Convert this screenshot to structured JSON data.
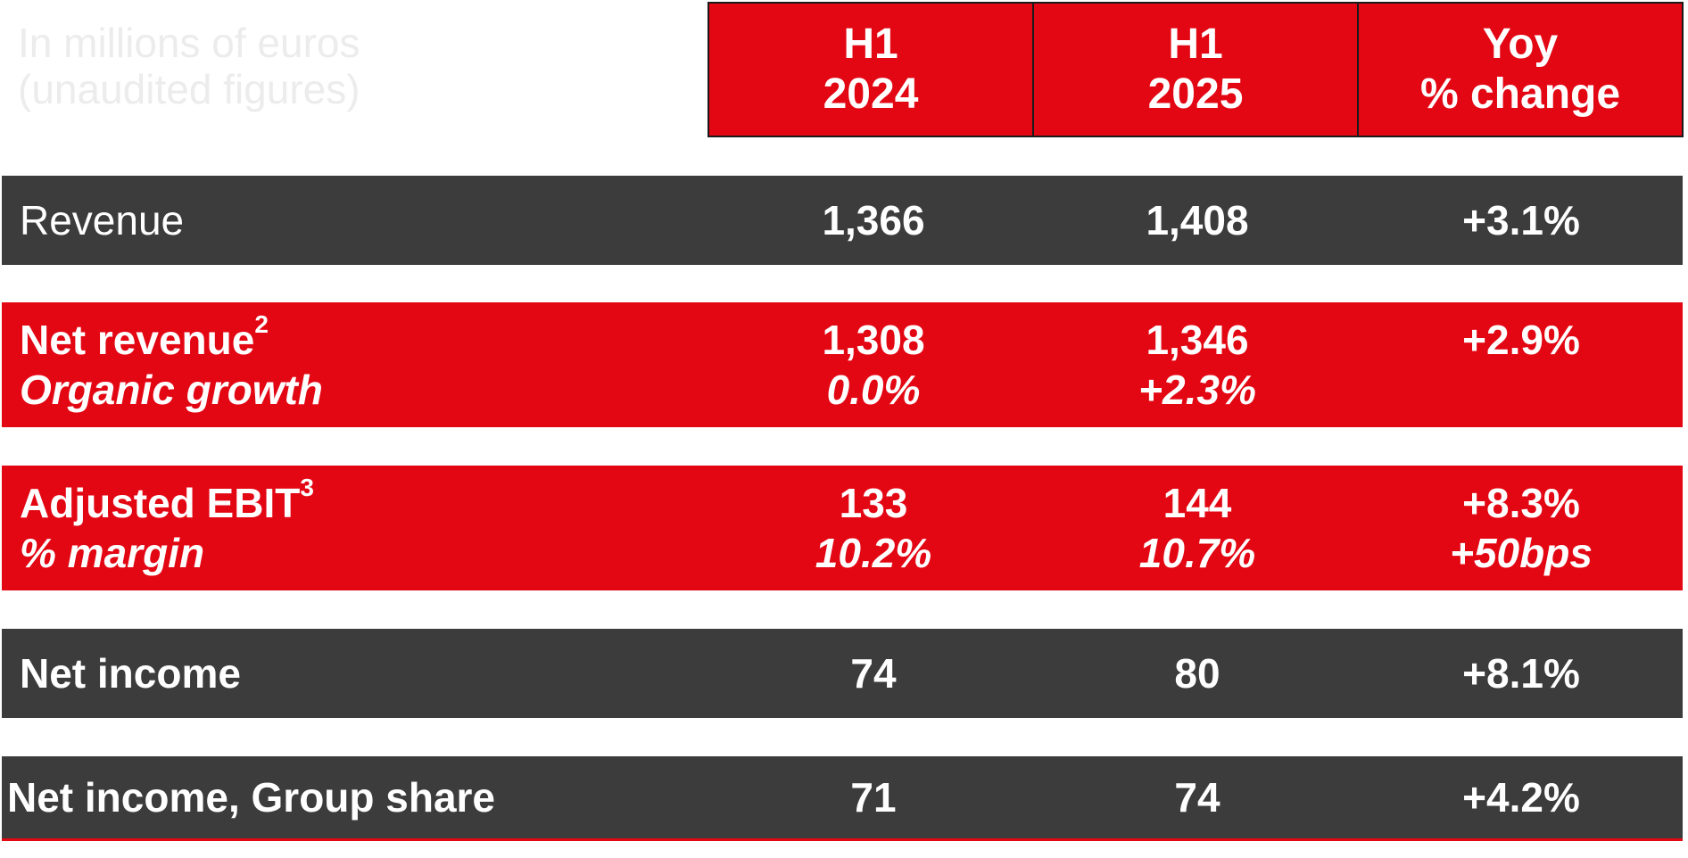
{
  "header": {
    "faint_title_line1": "In millions of euros",
    "faint_title_line2": "(unaudited figures)",
    "col1_line1": "H1",
    "col1_line2": "2024",
    "col2_line1": "H1",
    "col2_line2": "2025",
    "col3_line1": "Yoy",
    "col3_line2": "% change"
  },
  "rows": {
    "revenue": {
      "label": "Revenue",
      "h1_2024": "1,366",
      "h1_2025": "1,408",
      "yoy": "+3.1%"
    },
    "net_revenue": {
      "label": "Net revenue",
      "footnote": "2",
      "h1_2024": "1,308",
      "h1_2025": "1,346",
      "yoy": "+2.9%",
      "sub_label": "Organic growth",
      "sub_h1_2024": "0.0%",
      "sub_h1_2025": "+2.3%"
    },
    "adjusted_ebit": {
      "label": "Adjusted EBIT",
      "footnote": "3",
      "h1_2024": "133",
      "h1_2025": "144",
      "yoy": "+8.3%",
      "sub_label": "% margin",
      "sub_h1_2024": "10.2%",
      "sub_h1_2025": "10.7%",
      "sub_yoy": "+50bps"
    },
    "net_income": {
      "label": "Net income",
      "h1_2024": "74",
      "h1_2025": "80",
      "yoy": "+8.1%"
    },
    "net_income_group": {
      "label": "Net income, Group share",
      "h1_2024": "71",
      "h1_2025": "74",
      "yoy": "+4.2%"
    }
  },
  "colors": {
    "red": "#e30613",
    "dark": "#3c3c3c"
  }
}
